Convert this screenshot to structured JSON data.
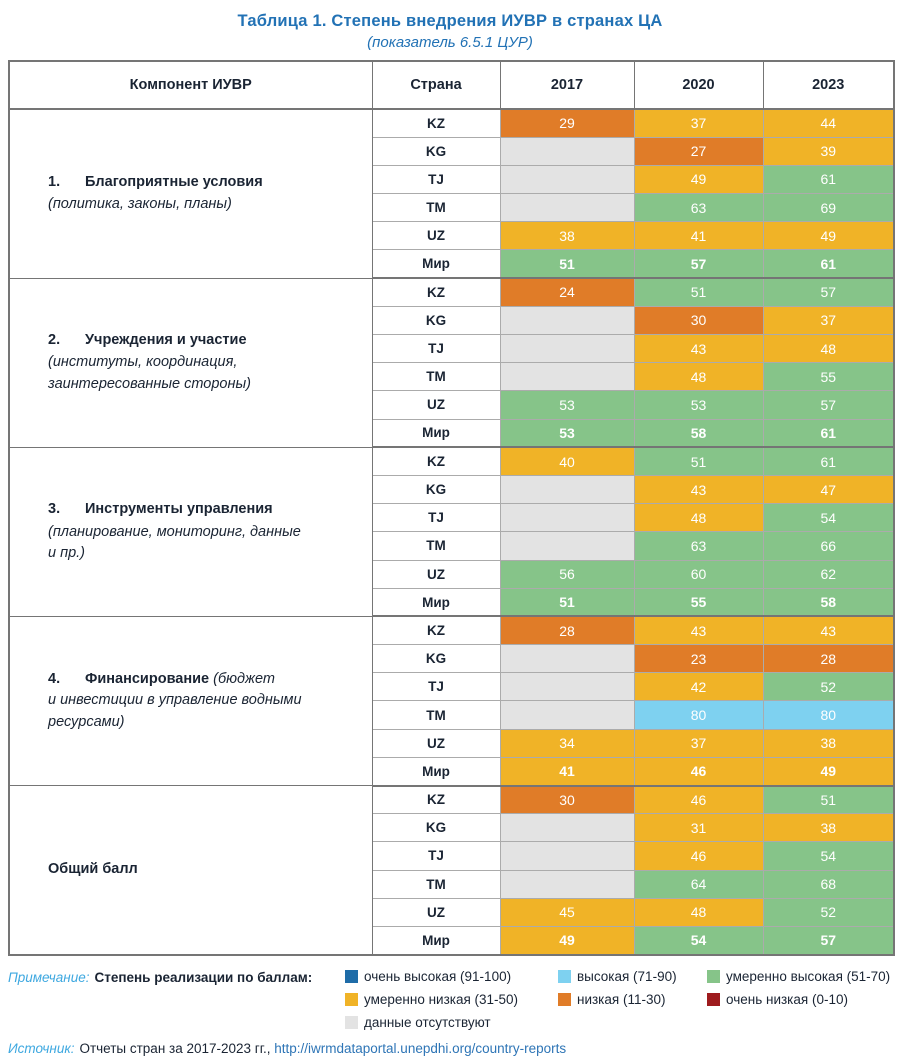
{
  "title": "Таблица 1. Степень внедрения ИУВР в странах ЦА",
  "subtitle": "(показатель 6.5.1 ЦУР)",
  "colors": {
    "very_high": "#1E6CA8",
    "high": "#7ED1F0",
    "mod_high": "#86C489",
    "mod_low": "#F0B327",
    "low": "#E07C28",
    "very_low": "#9E1B1E",
    "no_data": "#E3E3E3"
  },
  "table": {
    "headers": [
      "Компонент ИУВР",
      "Страна",
      "2017",
      "2020",
      "2023"
    ],
    "groups": [
      {
        "num": "1.",
        "bold": "Благоприятные условия",
        "italic": "(политика, законы, планы)",
        "inline": false,
        "rows": [
          {
            "country": "KZ",
            "world": false,
            "cells": [
              {
                "v": "29",
                "c": "low"
              },
              {
                "v": "37",
                "c": "mod_low"
              },
              {
                "v": "44",
                "c": "mod_low"
              }
            ]
          },
          {
            "country": "KG",
            "world": false,
            "cells": [
              {
                "v": "",
                "c": "no_data"
              },
              {
                "v": "27",
                "c": "low"
              },
              {
                "v": "39",
                "c": "mod_low"
              }
            ]
          },
          {
            "country": "TJ",
            "world": false,
            "cells": [
              {
                "v": "",
                "c": "no_data"
              },
              {
                "v": "49",
                "c": "mod_low"
              },
              {
                "v": "61",
                "c": "mod_high"
              }
            ]
          },
          {
            "country": "TM",
            "world": false,
            "cells": [
              {
                "v": "",
                "c": "no_data"
              },
              {
                "v": "63",
                "c": "mod_high"
              },
              {
                "v": "69",
                "c": "mod_high"
              }
            ]
          },
          {
            "country": "UZ",
            "world": false,
            "cells": [
              {
                "v": "38",
                "c": "mod_low"
              },
              {
                "v": "41",
                "c": "mod_low"
              },
              {
                "v": "49",
                "c": "mod_low"
              }
            ]
          },
          {
            "country": "Мир",
            "world": true,
            "cells": [
              {
                "v": "51",
                "c": "mod_high"
              },
              {
                "v": "57",
                "c": "mod_high"
              },
              {
                "v": "61",
                "c": "mod_high"
              }
            ]
          }
        ]
      },
      {
        "num": "2.",
        "bold": "Учреждения и участие",
        "italic": "(институты, координация,\nзаинтересованные стороны)",
        "inline": false,
        "rows": [
          {
            "country": "KZ",
            "world": false,
            "cells": [
              {
                "v": "24",
                "c": "low"
              },
              {
                "v": "51",
                "c": "mod_high"
              },
              {
                "v": "57",
                "c": "mod_high"
              }
            ]
          },
          {
            "country": "KG",
            "world": false,
            "cells": [
              {
                "v": "",
                "c": "no_data"
              },
              {
                "v": "30",
                "c": "low"
              },
              {
                "v": "37",
                "c": "mod_low"
              }
            ]
          },
          {
            "country": "TJ",
            "world": false,
            "cells": [
              {
                "v": "",
                "c": "no_data"
              },
              {
                "v": "43",
                "c": "mod_low"
              },
              {
                "v": "48",
                "c": "mod_low"
              }
            ]
          },
          {
            "country": "TM",
            "world": false,
            "cells": [
              {
                "v": "",
                "c": "no_data"
              },
              {
                "v": "48",
                "c": "mod_low"
              },
              {
                "v": "55",
                "c": "mod_high"
              }
            ]
          },
          {
            "country": "UZ",
            "world": false,
            "cells": [
              {
                "v": "53",
                "c": "mod_high"
              },
              {
                "v": "53",
                "c": "mod_high"
              },
              {
                "v": "57",
                "c": "mod_high"
              }
            ]
          },
          {
            "country": "Мир",
            "world": true,
            "cells": [
              {
                "v": "53",
                "c": "mod_high"
              },
              {
                "v": "58",
                "c": "mod_high"
              },
              {
                "v": "61",
                "c": "mod_high"
              }
            ]
          }
        ]
      },
      {
        "num": "3.",
        "bold": "Инструменты управления",
        "italic": "(планирование, мониторинг, данные\nи пр.)",
        "inline": false,
        "rows": [
          {
            "country": "KZ",
            "world": false,
            "cells": [
              {
                "v": "40",
                "c": "mod_low"
              },
              {
                "v": "51",
                "c": "mod_high"
              },
              {
                "v": "61",
                "c": "mod_high"
              }
            ]
          },
          {
            "country": "KG",
            "world": false,
            "cells": [
              {
                "v": "",
                "c": "no_data"
              },
              {
                "v": "43",
                "c": "mod_low"
              },
              {
                "v": "47",
                "c": "mod_low"
              }
            ]
          },
          {
            "country": "TJ",
            "world": false,
            "cells": [
              {
                "v": "",
                "c": "no_data"
              },
              {
                "v": "48",
                "c": "mod_low"
              },
              {
                "v": "54",
                "c": "mod_high"
              }
            ]
          },
          {
            "country": "TM",
            "world": false,
            "cells": [
              {
                "v": "",
                "c": "no_data"
              },
              {
                "v": "63",
                "c": "mod_high"
              },
              {
                "v": "66",
                "c": "mod_high"
              }
            ]
          },
          {
            "country": "UZ",
            "world": false,
            "cells": [
              {
                "v": "56",
                "c": "mod_high"
              },
              {
                "v": "60",
                "c": "mod_high"
              },
              {
                "v": "62",
                "c": "mod_high"
              }
            ]
          },
          {
            "country": "Мир",
            "world": true,
            "cells": [
              {
                "v": "51",
                "c": "mod_high"
              },
              {
                "v": "55",
                "c": "mod_high"
              },
              {
                "v": "58",
                "c": "mod_high"
              }
            ]
          }
        ]
      },
      {
        "num": "4.",
        "bold": "Финансирование",
        "italic": "(бюджет\nи инвестиции в управление водными\nресурсами)",
        "inline": true,
        "rows": [
          {
            "country": "KZ",
            "world": false,
            "cells": [
              {
                "v": "28",
                "c": "low"
              },
              {
                "v": "43",
                "c": "mod_low"
              },
              {
                "v": "43",
                "c": "mod_low"
              }
            ]
          },
          {
            "country": "KG",
            "world": false,
            "cells": [
              {
                "v": "",
                "c": "no_data"
              },
              {
                "v": "23",
                "c": "low"
              },
              {
                "v": "28",
                "c": "low"
              }
            ]
          },
          {
            "country": "TJ",
            "world": false,
            "cells": [
              {
                "v": "",
                "c": "no_data"
              },
              {
                "v": "42",
                "c": "mod_low"
              },
              {
                "v": "52",
                "c": "mod_high"
              }
            ]
          },
          {
            "country": "TM",
            "world": false,
            "cells": [
              {
                "v": "",
                "c": "no_data"
              },
              {
                "v": "80",
                "c": "high"
              },
              {
                "v": "80",
                "c": "high"
              }
            ]
          },
          {
            "country": "UZ",
            "world": false,
            "cells": [
              {
                "v": "34",
                "c": "mod_low"
              },
              {
                "v": "37",
                "c": "mod_low"
              },
              {
                "v": "38",
                "c": "mod_low"
              }
            ]
          },
          {
            "country": "Мир",
            "world": true,
            "cells": [
              {
                "v": "41",
                "c": "mod_low"
              },
              {
                "v": "46",
                "c": "mod_low"
              },
              {
                "v": "49",
                "c": "mod_low"
              }
            ]
          }
        ]
      },
      {
        "num": "",
        "bold": "Общий балл",
        "italic": "",
        "inline": false,
        "rows": [
          {
            "country": "KZ",
            "world": false,
            "cells": [
              {
                "v": "30",
                "c": "low"
              },
              {
                "v": "46",
                "c": "mod_low"
              },
              {
                "v": "51",
                "c": "mod_high"
              }
            ]
          },
          {
            "country": "KG",
            "world": false,
            "cells": [
              {
                "v": "",
                "c": "no_data"
              },
              {
                "v": "31",
                "c": "mod_low"
              },
              {
                "v": "38",
                "c": "mod_low"
              }
            ]
          },
          {
            "country": "TJ",
            "world": false,
            "cells": [
              {
                "v": "",
                "c": "no_data"
              },
              {
                "v": "46",
                "c": "mod_low"
              },
              {
                "v": "54",
                "c": "mod_high"
              }
            ]
          },
          {
            "country": "TM",
            "world": false,
            "cells": [
              {
                "v": "",
                "c": "no_data"
              },
              {
                "v": "64",
                "c": "mod_high"
              },
              {
                "v": "68",
                "c": "mod_high"
              }
            ]
          },
          {
            "country": "UZ",
            "world": false,
            "cells": [
              {
                "v": "45",
                "c": "mod_low"
              },
              {
                "v": "48",
                "c": "mod_low"
              },
              {
                "v": "52",
                "c": "mod_high"
              }
            ]
          },
          {
            "country": "Мир",
            "world": true,
            "cells": [
              {
                "v": "49",
                "c": "mod_low"
              },
              {
                "v": "54",
                "c": "mod_high"
              },
              {
                "v": "57",
                "c": "mod_high"
              }
            ]
          }
        ]
      }
    ]
  },
  "legend": {
    "note_label": "Примечание:",
    "note_bold": "Степень реализации по баллам:",
    "items": [
      {
        "label": "очень высокая (91-100)",
        "key": "very_high"
      },
      {
        "label": "высокая (71-90)",
        "key": "high"
      },
      {
        "label": "умеренно высокая (51-70)",
        "key": "mod_high"
      },
      {
        "label": "умеренно низкая (31-50)",
        "key": "mod_low"
      },
      {
        "label": "низкая (11-30)",
        "key": "low"
      },
      {
        "label": "очень низкая (0-10)",
        "key": "very_low"
      },
      {
        "label": "данные отсутствуют",
        "key": "no_data"
      }
    ]
  },
  "source": {
    "label": "Источник:",
    "text": "Отчеты стран за 2017-2023 гг.,",
    "link": "http://iwrmdataportal.unepdhi.org/country-reports"
  }
}
